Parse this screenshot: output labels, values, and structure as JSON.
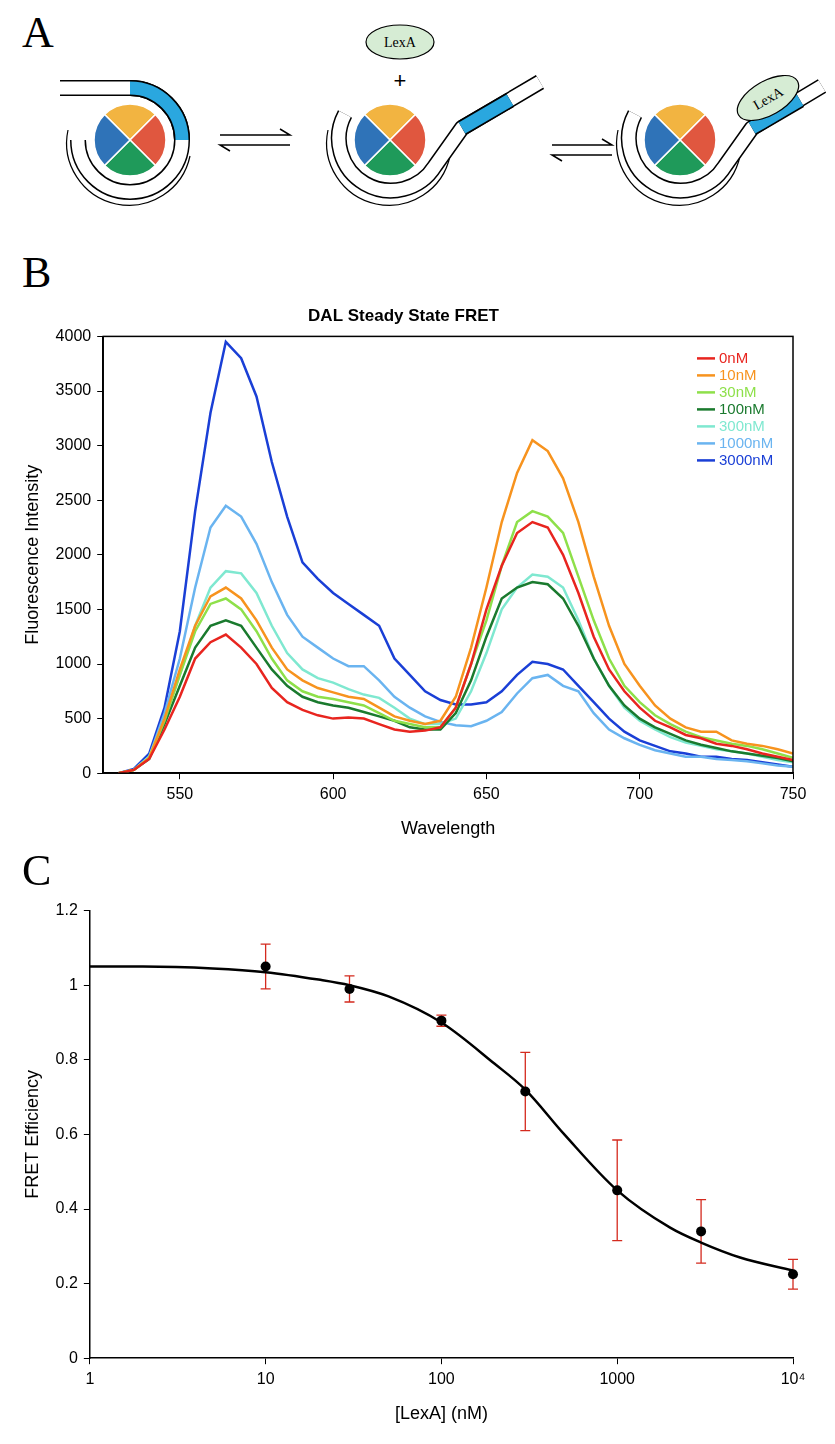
{
  "panel_a": {
    "panel": "A",
    "type": "diagram",
    "free_protein": "LexA",
    "operator": "+",
    "bound_protein": "LexA"
  },
  "chart_data": [
    {
      "panel": "B",
      "type": "line",
      "title": "DAL Steady State FRET",
      "x_label": "Wavelength",
      "y_label": "Fluorescence Intensity",
      "x": [
        530,
        535,
        540,
        545,
        550,
        555,
        560,
        565,
        570,
        575,
        580,
        585,
        590,
        595,
        600,
        605,
        610,
        615,
        620,
        625,
        630,
        635,
        640,
        645,
        650,
        655,
        660,
        665,
        670,
        675,
        680,
        685,
        690,
        695,
        700,
        705,
        710,
        715,
        720,
        725,
        730,
        735,
        740,
        745,
        750
      ],
      "xlim": [
        525,
        750
      ],
      "xticks": [
        550,
        600,
        650,
        700,
        750
      ],
      "ylim": [
        0,
        4000
      ],
      "yticks": [
        0,
        500,
        1000,
        1500,
        2000,
        2500,
        3000,
        3500,
        4000
      ],
      "grid": false,
      "legend": "top right",
      "series": [
        {
          "name": "0nM",
          "color": "#e8251f",
          "values": [
            0,
            30,
            130,
            400,
            700,
            1050,
            1200,
            1270,
            1150,
            1000,
            780,
            650,
            580,
            530,
            500,
            510,
            500,
            450,
            400,
            380,
            390,
            420,
            600,
            1000,
            1500,
            1900,
            2200,
            2300,
            2250,
            2000,
            1650,
            1250,
            950,
            750,
            600,
            480,
            420,
            350,
            320,
            270,
            250,
            220,
            180,
            150,
            120
          ]
        },
        {
          "name": "10nM",
          "color": "#f7931e",
          "values": [
            0,
            30,
            140,
            500,
            950,
            1350,
            1620,
            1700,
            1600,
            1400,
            1150,
            950,
            850,
            780,
            740,
            700,
            680,
            600,
            520,
            480,
            450,
            480,
            700,
            1150,
            1700,
            2300,
            2750,
            3050,
            2950,
            2700,
            2300,
            1800,
            1350,
            1000,
            800,
            620,
            500,
            420,
            380,
            380,
            300,
            270,
            250,
            220,
            180
          ]
        },
        {
          "name": "30nM",
          "color": "#8ee04a",
          "values": [
            0,
            30,
            140,
            480,
            900,
            1300,
            1550,
            1600,
            1500,
            1300,
            1050,
            850,
            750,
            700,
            680,
            650,
            620,
            550,
            480,
            450,
            420,
            420,
            600,
            1000,
            1400,
            1900,
            2300,
            2400,
            2350,
            2200,
            1800,
            1400,
            1050,
            800,
            650,
            530,
            450,
            380,
            330,
            300,
            270,
            250,
            220,
            180,
            140
          ]
        },
        {
          "name": "100nM",
          "color": "#1a7a2e",
          "values": [
            0,
            30,
            130,
            450,
            800,
            1150,
            1350,
            1400,
            1350,
            1150,
            950,
            800,
            700,
            650,
            620,
            600,
            560,
            520,
            480,
            420,
            400,
            400,
            550,
            850,
            1250,
            1600,
            1700,
            1750,
            1730,
            1600,
            1350,
            1050,
            800,
            620,
            500,
            420,
            360,
            300,
            260,
            230,
            200,
            180,
            160,
            140,
            110
          ]
        },
        {
          "name": "300nM",
          "color": "#7fe8d0",
          "values": [
            0,
            30,
            150,
            500,
            900,
            1350,
            1700,
            1850,
            1830,
            1650,
            1350,
            1100,
            950,
            870,
            830,
            770,
            720,
            690,
            600,
            500,
            450,
            450,
            500,
            750,
            1100,
            1500,
            1700,
            1820,
            1800,
            1700,
            1400,
            1050,
            800,
            600,
            480,
            400,
            330,
            280,
            250,
            220,
            200,
            180,
            150,
            120,
            100
          ]
        },
        {
          "name": "1000nM",
          "color": "#6ab4f0",
          "values": [
            0,
            30,
            150,
            550,
            1050,
            1700,
            2250,
            2450,
            2350,
            2100,
            1750,
            1450,
            1250,
            1150,
            1050,
            980,
            980,
            850,
            700,
            600,
            520,
            470,
            440,
            430,
            480,
            560,
            730,
            870,
            900,
            800,
            750,
            550,
            400,
            320,
            260,
            210,
            180,
            150,
            150,
            130,
            120,
            110,
            90,
            70,
            60
          ]
        },
        {
          "name": "3000nM",
          "color": "#1a3fd6",
          "values": [
            0,
            40,
            180,
            600,
            1300,
            2400,
            3300,
            3950,
            3800,
            3450,
            2850,
            2350,
            1930,
            1780,
            1650,
            1550,
            1450,
            1350,
            1050,
            900,
            750,
            670,
            630,
            630,
            650,
            750,
            900,
            1020,
            1000,
            950,
            800,
            650,
            500,
            380,
            300,
            250,
            200,
            180,
            150,
            150,
            130,
            120,
            100,
            80,
            60
          ]
        }
      ]
    },
    {
      "panel": "C",
      "type": "scatter",
      "x_label": "[LexA] (nM)",
      "y_label": "FRET Efficiency",
      "log": "x",
      "xlim": [
        1,
        10000
      ],
      "xticks": [
        1,
        10,
        100,
        1000,
        {
          "value": 10000,
          "label": "10⁴"
        }
      ],
      "ylim": [
        0,
        1.2
      ],
      "yticks": [
        0,
        0.2,
        0.4,
        0.6,
        0.8,
        1,
        1.2
      ],
      "grid": false,
      "series": [
        {
          "type": "line",
          "color": "#000000",
          "x": [
            1,
            2,
            5,
            10,
            20,
            30,
            50,
            100,
            200,
            300,
            500,
            1000,
            2000,
            3000,
            5000,
            10000
          ],
          "values": [
            1.05,
            1.05,
            1.045,
            1.035,
            1.015,
            1.0,
            0.97,
            0.9,
            0.79,
            0.72,
            0.6,
            0.45,
            0.35,
            0.31,
            0.27,
            0.235
          ]
        },
        {
          "type": "scatter",
          "marker": "circle",
          "color": "#000000",
          "x": [
            10,
            30,
            100,
            300,
            1000,
            3000,
            10000
          ],
          "values": [
            1.05,
            0.99,
            0.905,
            0.715,
            0.45,
            0.34,
            0.225
          ],
          "errors": [
            0.06,
            0.035,
            0.015,
            0.105,
            0.135,
            0.085,
            0.04
          ]
        }
      ]
    }
  ]
}
